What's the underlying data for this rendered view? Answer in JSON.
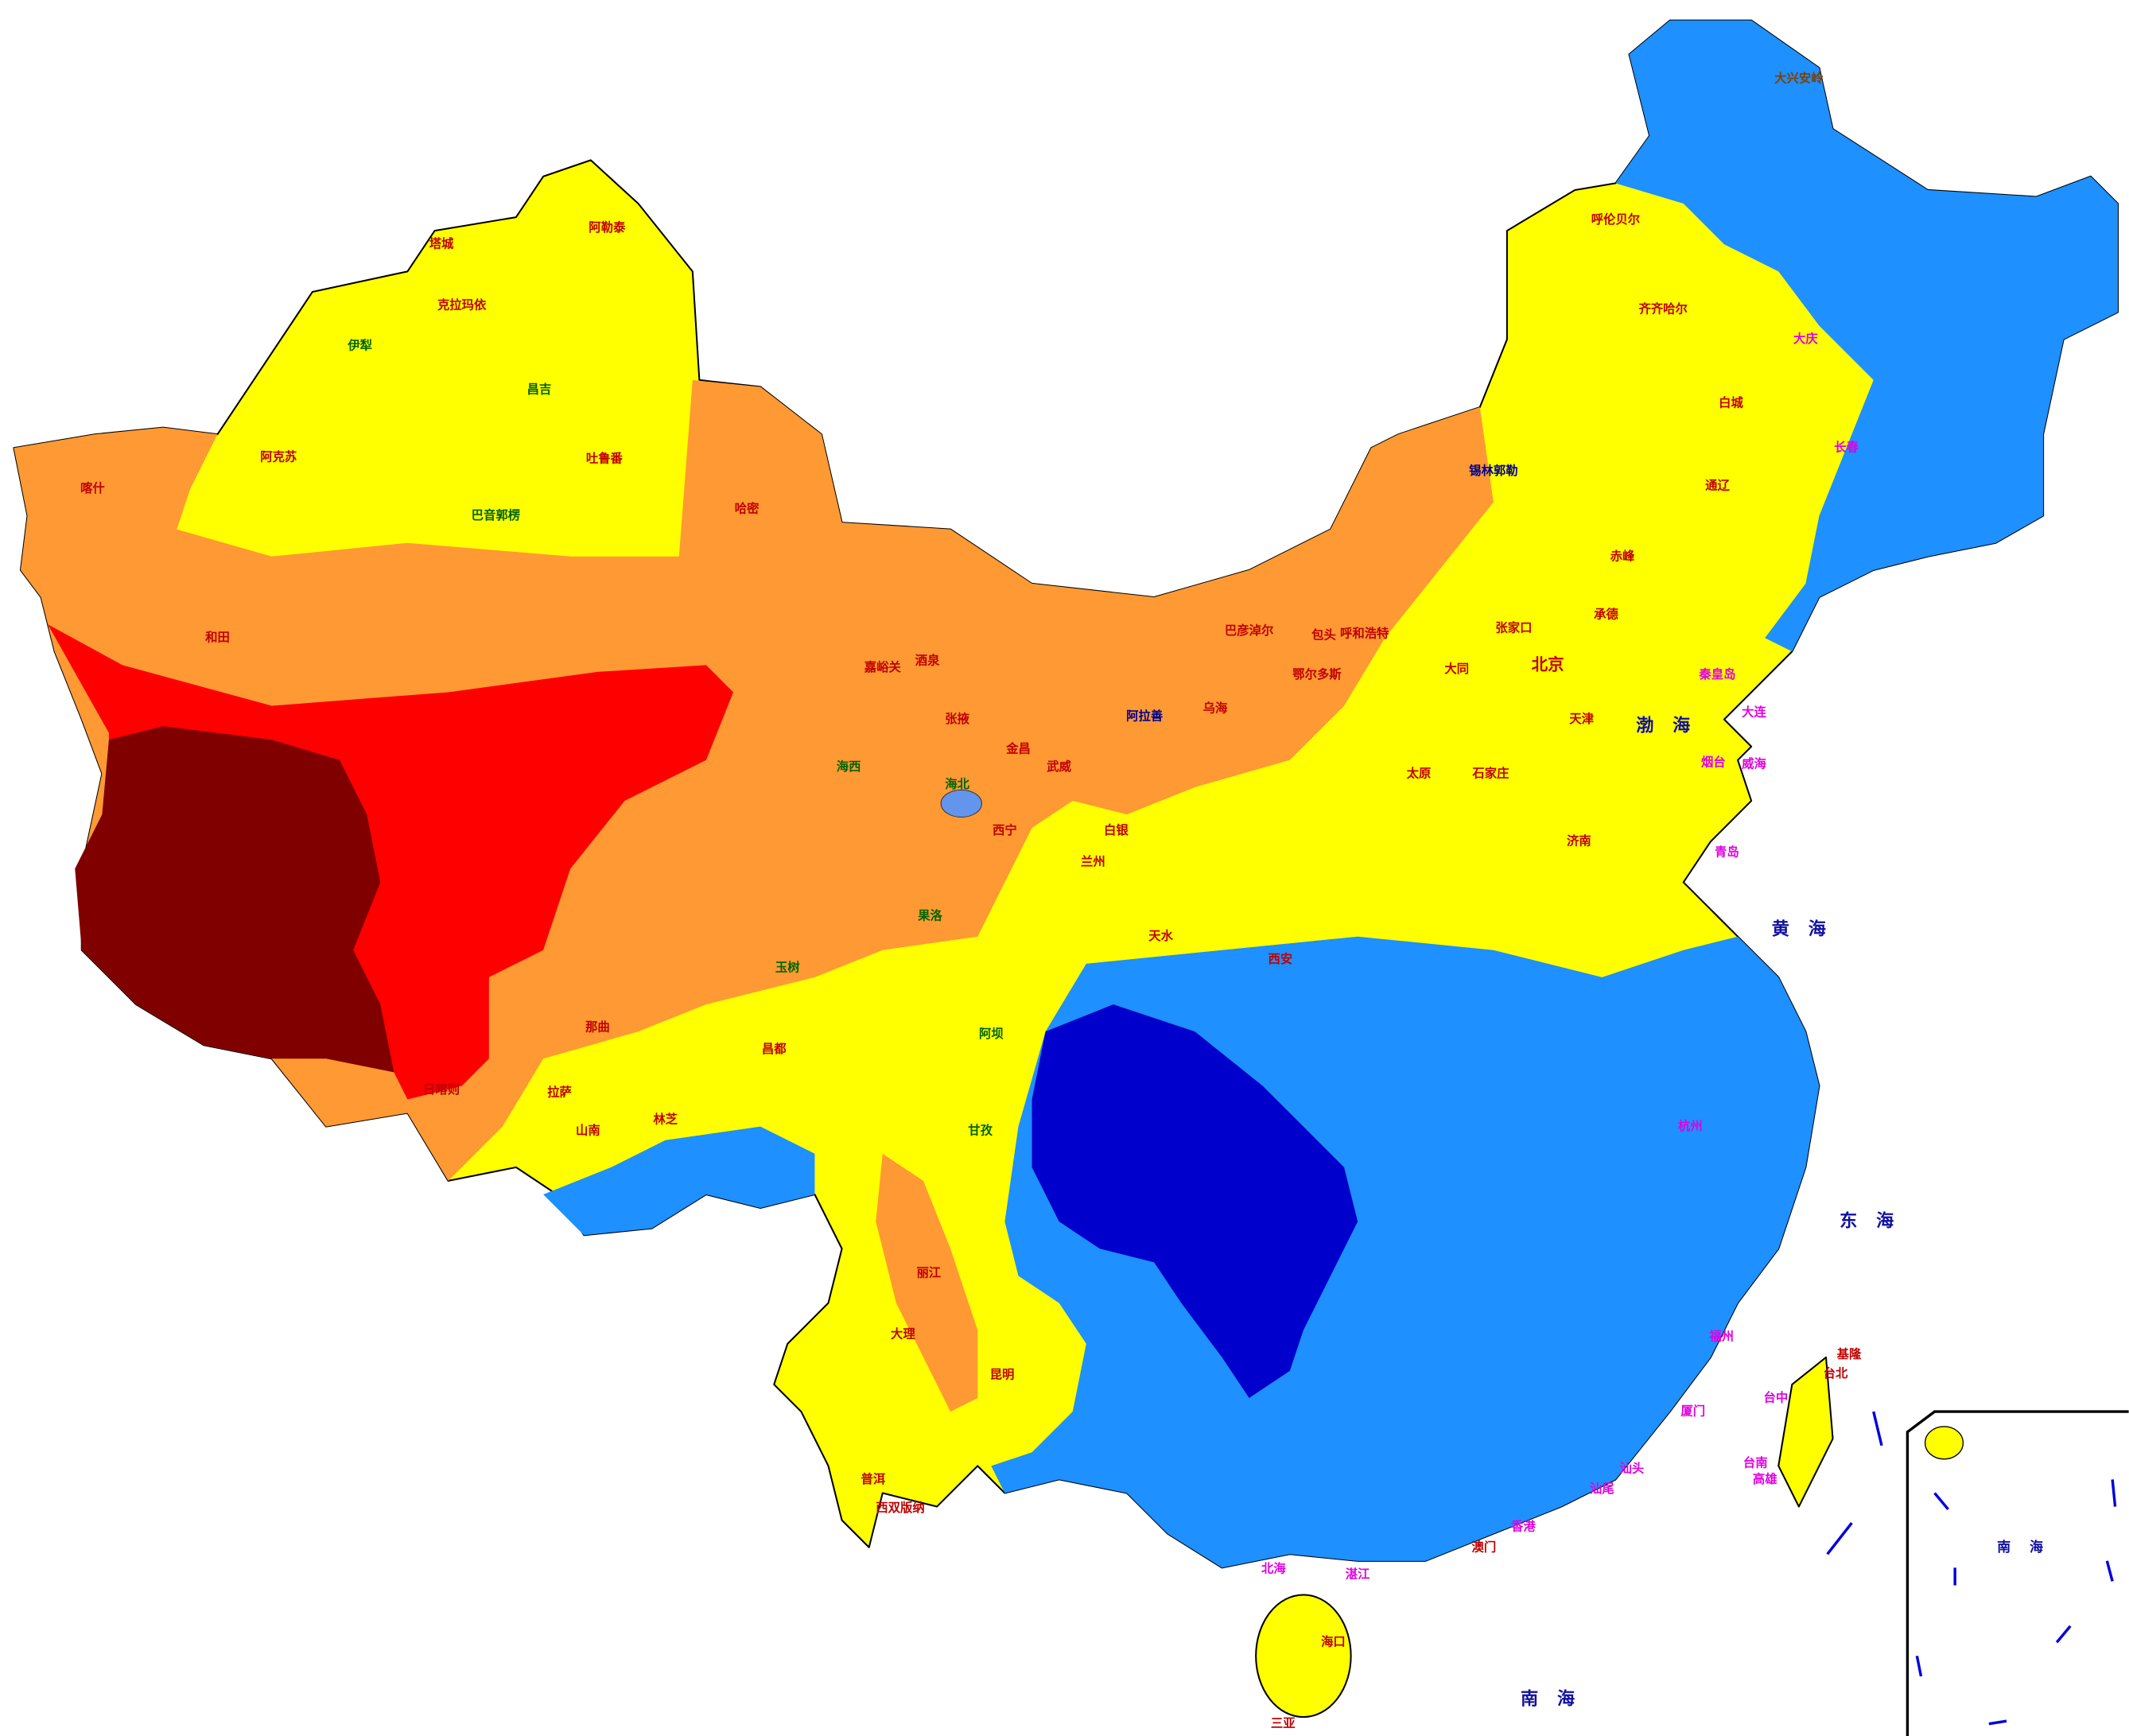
{
  "seas": [
    "渤海",
    "黄海",
    "东海",
    "南海",
    "南海"
  ],
  "places": [
    "北京",
    "天津",
    "杭州",
    "台北",
    "香港",
    "澳门",
    "汕尾",
    "汕头",
    "厦门",
    "福州",
    "昌吉",
    "阿勒泰",
    "塔城",
    "克拉玛依",
    "伊犁",
    "阿克苏",
    "巴音郭楞",
    "吐鲁番",
    "哈密",
    "和田",
    "喀什",
    "日喀则",
    "拉萨",
    "山南",
    "林芝",
    "那曲",
    "昌都",
    "玉树",
    "果洛",
    "海西",
    "海北",
    "西宁",
    "兰州",
    "酒泉",
    "嘉峪关",
    "张掖",
    "金昌",
    "武威",
    "阿拉善",
    "白银",
    "天水",
    "西安",
    "昆明",
    "大理",
    "丽江",
    "西双版纳",
    "普洱",
    "甘孜",
    "阿坝",
    "呼和浩特",
    "包头",
    "鄂尔多斯",
    "巴彦淖尔",
    "乌海",
    "锡林郭勒",
    "呼伦贝尔",
    "大兴安岭",
    "齐齐哈尔",
    "大庆",
    "长春",
    "白城",
    "通辽",
    "赤峰",
    "张家口",
    "大同",
    "太原",
    "石家庄",
    "济南",
    "青岛",
    "大连",
    "承德",
    "秦皇岛",
    "烟台",
    "威海",
    "海口",
    "三亚",
    "北海",
    "湛江",
    "台中",
    "台南",
    "高雄",
    "基隆"
  ]
}
